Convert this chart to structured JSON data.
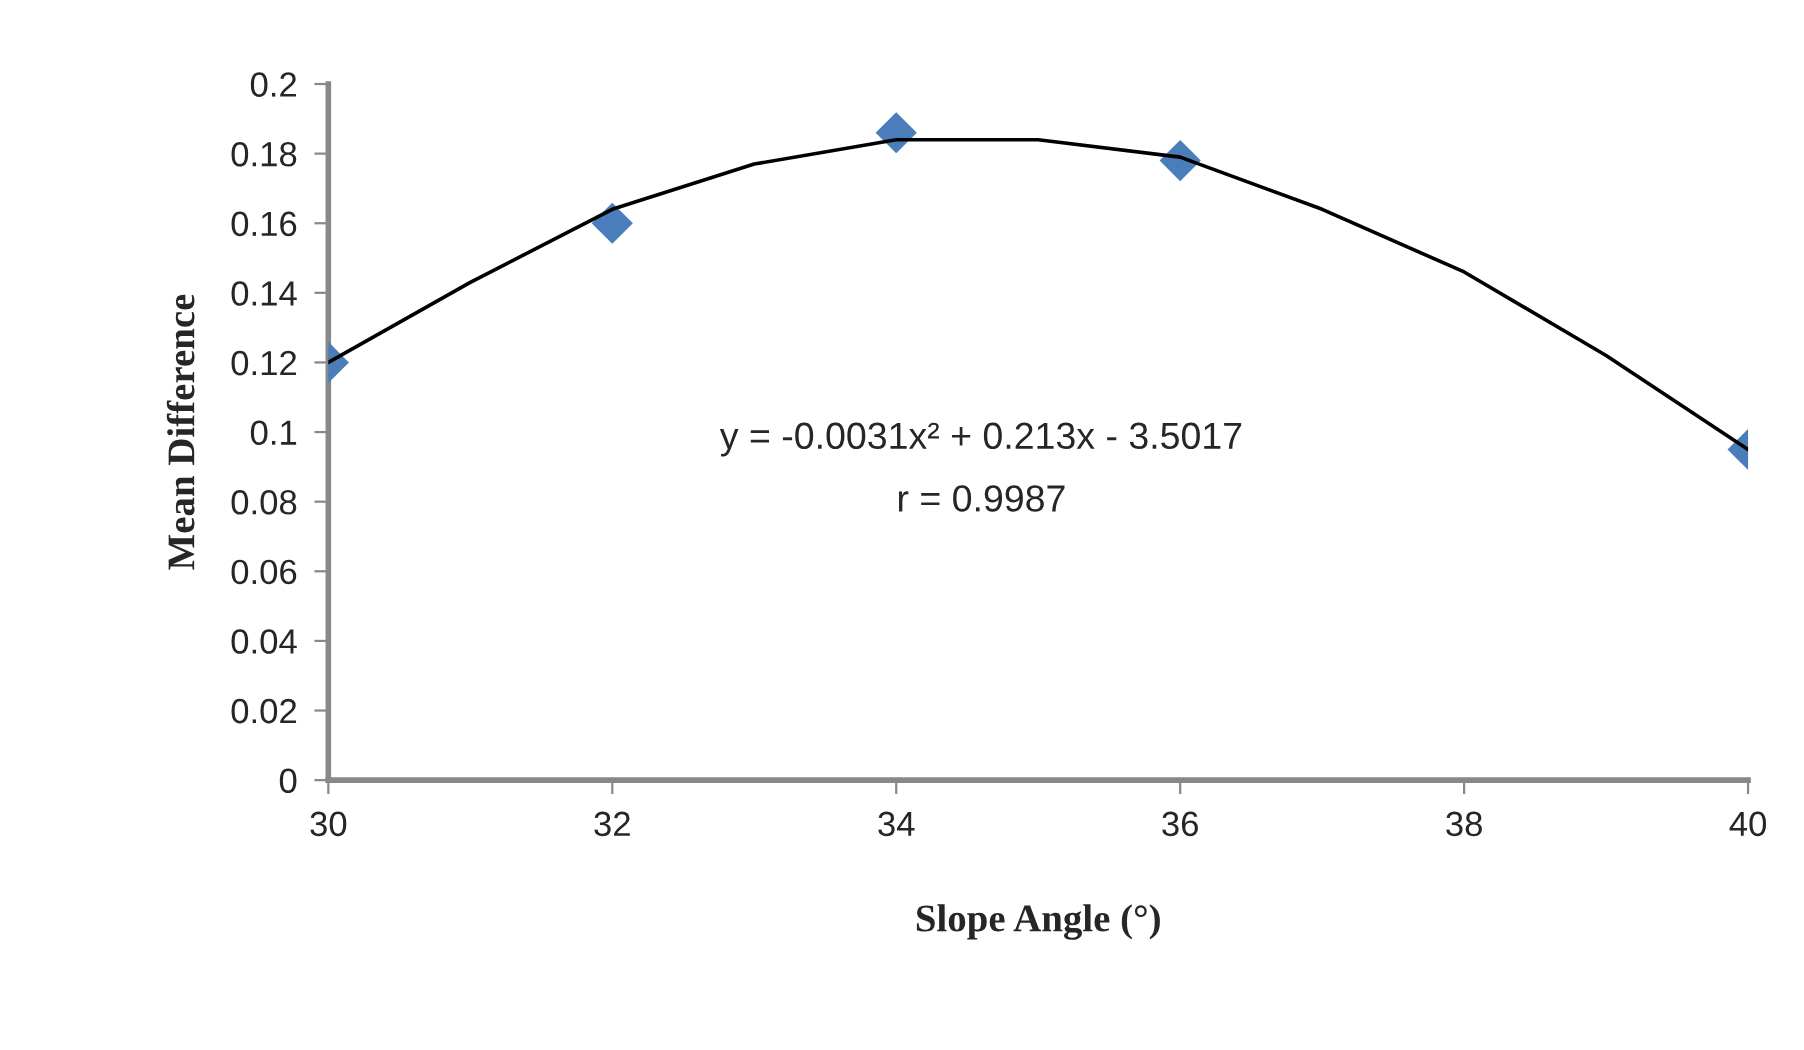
{
  "chart_data": {
    "type": "scatter",
    "xlabel": "Slope Angle (°)",
    "ylabel": "Mean Difference",
    "xlim": [
      30,
      40
    ],
    "xticks": [
      30,
      32,
      34,
      36,
      38,
      40
    ],
    "ylim": [
      0,
      0.2
    ],
    "yticks": [
      0,
      0.02,
      0.04,
      0.06,
      0.08,
      0.1,
      0.12,
      0.14,
      0.16,
      0.18,
      0.2
    ],
    "grid": false,
    "legend": false,
    "marker": "diamond",
    "series": [
      {
        "color": "#4a7ebb",
        "x": [
          30,
          32,
          34,
          36,
          40
        ],
        "values": [
          0.12,
          0.16,
          0.186,
          0.178,
          0.095
        ]
      },
      {
        "type": "line",
        "color": "#000000",
        "marker": "none",
        "line_style": "solid",
        "x": [
          30,
          31,
          32,
          33,
          34,
          35,
          36,
          37,
          38,
          39,
          40
        ],
        "values": [
          0.12,
          0.143,
          0.164,
          0.177,
          0.184,
          0.184,
          0.179,
          0.164,
          0.146,
          0.122,
          0.095
        ]
      }
    ],
    "annotations": [
      "y = -0.0031x² + 0.213x - 3.5017",
      "r = 0.9987"
    ]
  }
}
